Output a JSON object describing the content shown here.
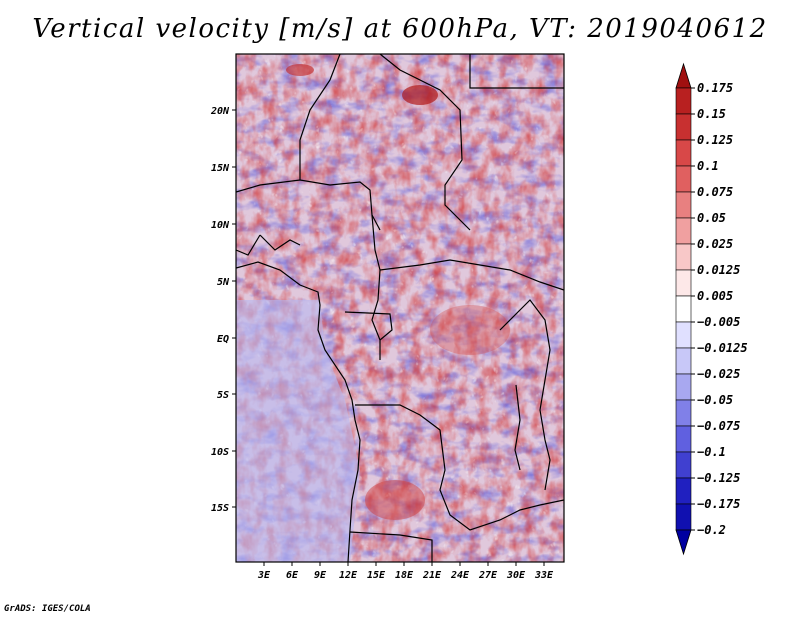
{
  "title": "Vertical velocity [m/s] at 600hPa, VT: 2019040612",
  "credit": "GrADS: IGES/COLA",
  "map": {
    "variable": "Vertical velocity",
    "units": "m/s",
    "level": "600hPa",
    "valid_time": "2019040612",
    "region": "Central Africa",
    "lat_labels": [
      "20N",
      "15N",
      "10N",
      "5N",
      "EQ",
      "5S",
      "10S",
      "15S"
    ],
    "lon_labels": [
      "3E",
      "6E",
      "9E",
      "12E",
      "15E",
      "18E",
      "21E",
      "24E",
      "27E",
      "30E",
      "33E"
    ]
  },
  "colorbar": {
    "levels": [
      "0.175",
      "0.15",
      "0.125",
      "0.1",
      "0.075",
      "0.05",
      "0.025",
      "0.0125",
      "0.005",
      "-0.005",
      "-0.0125",
      "-0.025",
      "-0.05",
      "-0.075",
      "-0.1",
      "-0.125",
      "-0.175",
      "-0.2"
    ],
    "colors": [
      "#a01010",
      "#b82020",
      "#c83030",
      "#d84848",
      "#e06060",
      "#e88080",
      "#f0a0a0",
      "#f8c8c8",
      "#fde8e8",
      "#ffffff",
      "#e0e0ff",
      "#c8c8f8",
      "#a8a8f0",
      "#8080e8",
      "#6060e0",
      "#4040d0",
      "#2020c0",
      "#1010b0",
      "#0000a0"
    ]
  }
}
